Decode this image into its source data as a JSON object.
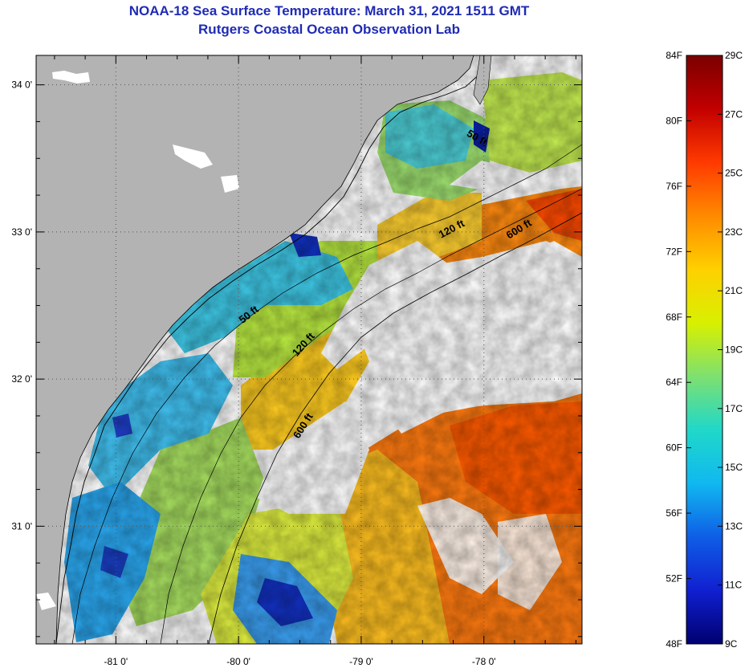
{
  "header": {
    "title": "NOAA-18 Sea Surface Temperature:  March 31, 2021 1511 GMT",
    "subtitle": "Rutgers Coastal Ocean Observation Lab"
  },
  "map": {
    "longitude_labels": [
      "-81 0'",
      "-80 0'",
      "-79 0'",
      "-78 0'"
    ],
    "latitude_labels": [
      "34 0'",
      "33 0'",
      "32 0'",
      "31 0'"
    ],
    "lon_range": [
      -81.65,
      -77.2
    ],
    "lat_range": [
      30.2,
      34.2
    ],
    "contour_labels": [
      {
        "text": "50 ft",
        "lon": -78.07,
        "lat": 33.62
      },
      {
        "text": "120 ft",
        "lon": -78.25,
        "lat": 33.0
      },
      {
        "text": "600 ft",
        "lon": -77.7,
        "lat": 33.0
      },
      {
        "text": "50 ft",
        "lon": -79.9,
        "lat": 32.42
      },
      {
        "text": "120 ft",
        "lon": -79.45,
        "lat": 32.22
      },
      {
        "text": "600 ft",
        "lon": -79.45,
        "lat": 31.67
      }
    ],
    "colors": {
      "land": "#b3b3b3",
      "cloud": "#ffffff"
    }
  },
  "colorbar": {
    "fahrenheit_labels": [
      "84F",
      "80F",
      "76F",
      "72F",
      "68F",
      "64F",
      "60F",
      "56F",
      "52F",
      "48F"
    ],
    "celsius_labels": [
      "29C",
      "27C",
      "25C",
      "23C",
      "21C",
      "19C",
      "17C",
      "15C",
      "13C",
      "11C",
      "9C"
    ],
    "stops": [
      "#7a0000",
      "#c20000",
      "#ff3a00",
      "#ff8a00",
      "#ffd000",
      "#d8f000",
      "#7ee070",
      "#20d8c8",
      "#10b8f0",
      "#0f5ee6",
      "#1020d0",
      "#000070"
    ]
  }
}
